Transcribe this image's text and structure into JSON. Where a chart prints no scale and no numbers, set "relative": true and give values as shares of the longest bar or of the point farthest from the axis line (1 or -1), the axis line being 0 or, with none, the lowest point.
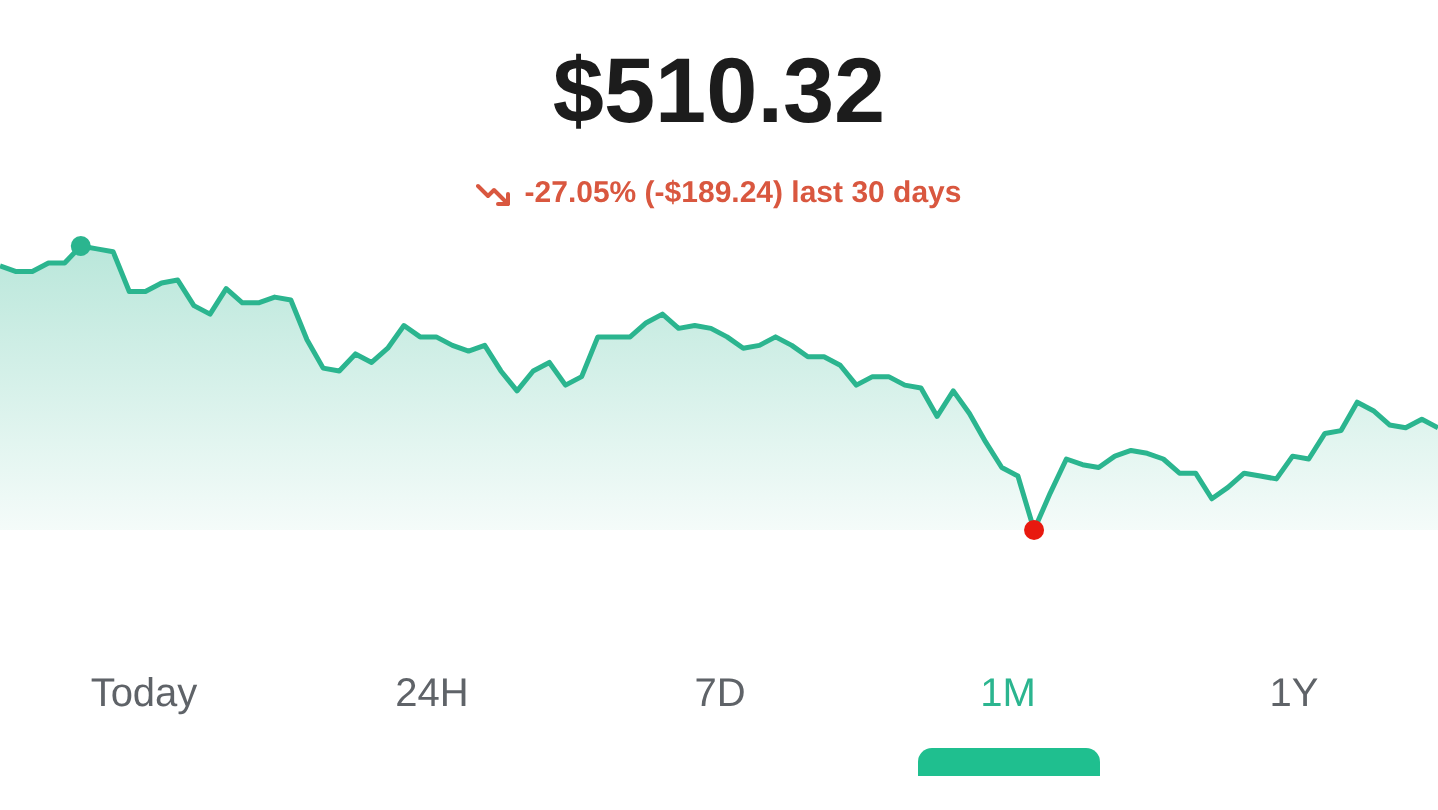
{
  "chart_data": {
    "type": "area",
    "title": "$510.32",
    "subtitle": "-27.05% (-$189.24) last 30 days",
    "relative": true,
    "legend": false,
    "marker": "none",
    "categories": [
      null,
      null,
      null,
      null,
      null,
      null,
      null,
      null,
      null,
      null,
      null,
      null,
      null,
      null,
      null,
      null,
      null,
      null,
      null,
      null,
      null,
      null,
      null,
      null,
      null,
      null,
      null,
      null,
      null,
      null,
      null,
      null,
      null,
      null,
      null,
      null,
      null,
      null,
      null,
      null,
      null,
      null,
      null,
      null,
      null,
      null,
      null,
      null,
      null,
      null,
      null,
      null,
      null,
      null,
      null,
      null,
      null,
      null,
      null,
      null,
      null,
      null,
      null,
      null,
      null,
      null,
      null,
      null,
      null,
      null,
      null,
      null,
      null,
      null,
      null,
      null,
      null,
      null,
      null,
      null,
      null,
      null,
      null,
      null,
      null,
      null,
      null,
      null,
      null,
      null
    ],
    "series": [
      {
        "color": "#2bb58f",
        "values": [
          0.93,
          0.91,
          0.91,
          0.94,
          0.94,
          1,
          0.99,
          0.98,
          0.84,
          0.84,
          0.87,
          0.88,
          0.79,
          0.76,
          0.85,
          0.8,
          0.8,
          0.82,
          0.81,
          0.67,
          0.57,
          0.56,
          0.62,
          0.59,
          0.64,
          0.72,
          0.68,
          0.68,
          0.65,
          0.63,
          0.65,
          0.56,
          0.49,
          0.56,
          0.59,
          0.51,
          0.54,
          0.68,
          0.68,
          0.68,
          0.73,
          0.76,
          0.71,
          0.72,
          0.71,
          0.68,
          0.64,
          0.65,
          0.68,
          0.65,
          0.61,
          0.61,
          0.58,
          0.51,
          0.54,
          0.54,
          0.51,
          0.5,
          0.4,
          0.49,
          0.41,
          0.31,
          0.22,
          0.19,
          0,
          0.13,
          0.25,
          0.23,
          0.22,
          0.26,
          0.28,
          0.27,
          0.25,
          0.2,
          0.2,
          0.11,
          0.15,
          0.2,
          0.19,
          0.18,
          0.26,
          0.25,
          0.34,
          0.35,
          0.45,
          0.42,
          0.37,
          0.36,
          0.39,
          0.36
        ]
      }
    ],
    "annotations": [
      "Today",
      "24H",
      "7D",
      "1M",
      "1Y"
    ]
  }
}
